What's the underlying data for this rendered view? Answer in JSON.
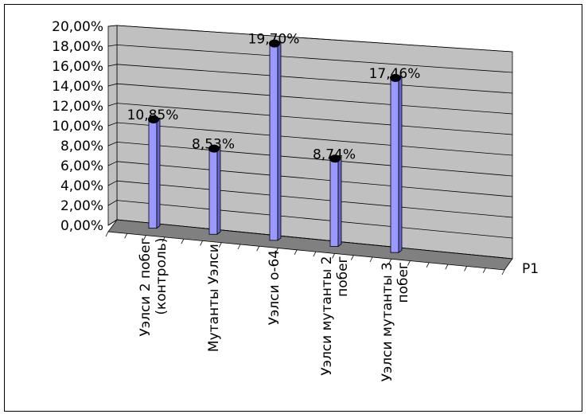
{
  "chart_data": {
    "type": "bar",
    "title": "",
    "xlabel": "",
    "ylabel": "",
    "categories": [
      [
        "Уэлси 2 побег",
        "(контроль)"
      ],
      [
        "Мутанты Уэлси"
      ],
      [
        "Уэлси о-64"
      ],
      [
        "Уэлси мутанты 2",
        "побег"
      ],
      [
        "Уэлси мутанты 3",
        "побег"
      ]
    ],
    "series": [
      {
        "name": "Р1",
        "values": [
          10.85,
          8.53,
          19.7,
          8.74,
          17.46
        ],
        "labels": [
          "10,85%",
          "8,53%",
          "19,70%",
          "8,74%",
          "17,46%"
        ],
        "color": "#9999ff"
      }
    ],
    "ylim": [
      0,
      20
    ],
    "yticks": [
      "0,00%",
      "2,00%",
      "4,00%",
      "6,00%",
      "8,00%",
      "10,00%",
      "12,00%",
      "14,00%",
      "16,00%",
      "18,00%",
      "20,00%"
    ],
    "grid": true,
    "legend": "right",
    "wall_color": "#c0c0c0",
    "floor_color": "#808080"
  }
}
